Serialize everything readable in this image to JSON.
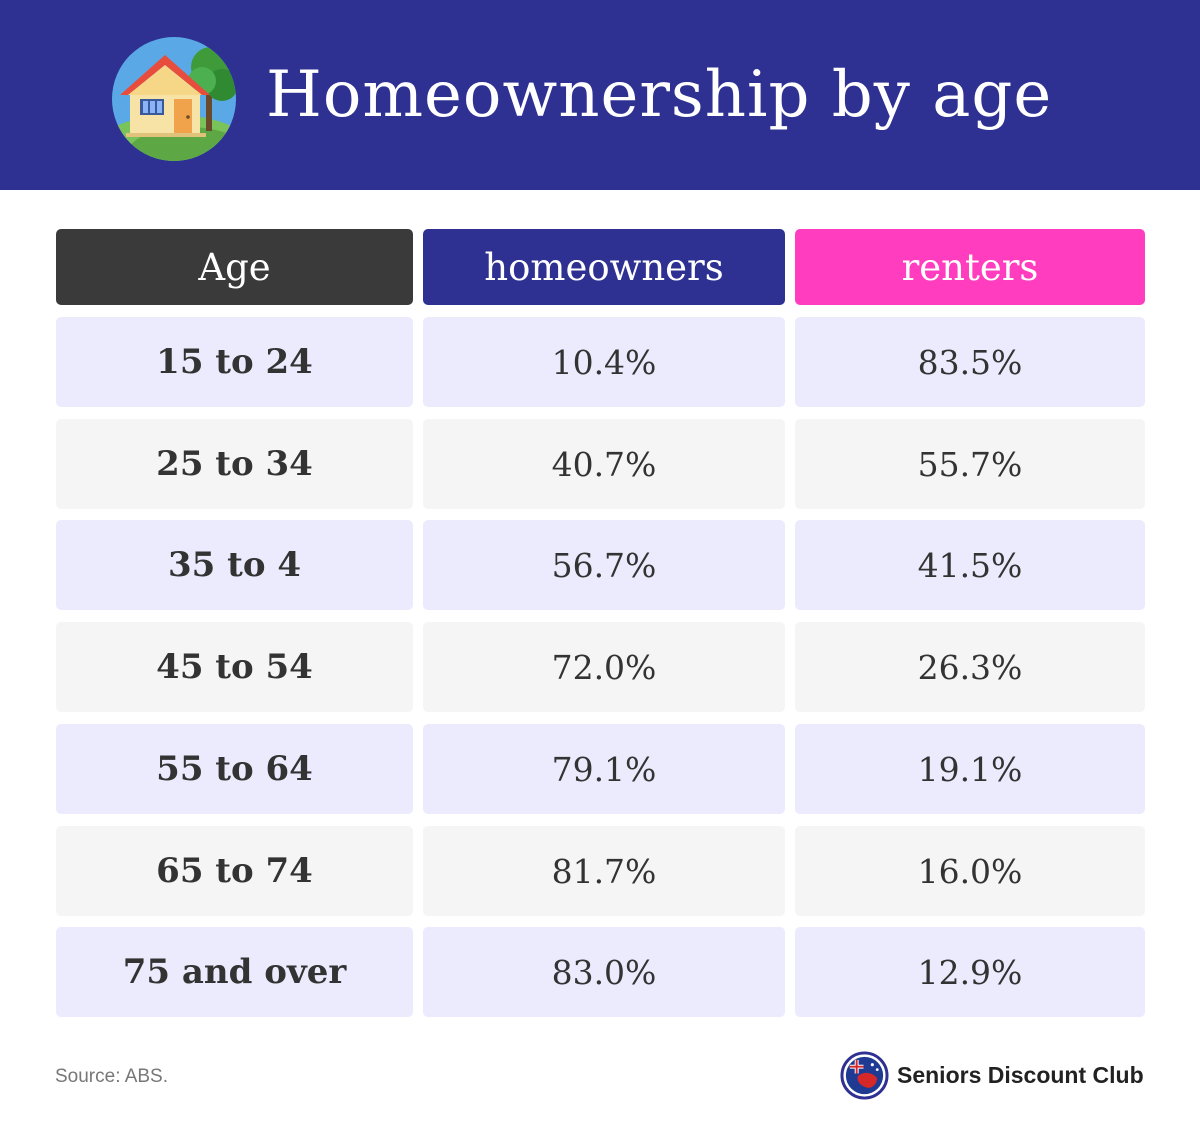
{
  "header": {
    "title": "Homeownership by age",
    "icon": "house-with-tree-icon",
    "background_color": "#2e3192"
  },
  "chart_data": {
    "type": "table",
    "columns": [
      {
        "label": "Age",
        "color": "#3a3a3a"
      },
      {
        "label": "homeowners",
        "color": "#2e3192"
      },
      {
        "label": "renters",
        "color": "#ff3dbe"
      }
    ],
    "row_colors": [
      "#ecebfd",
      "#f5f5f5"
    ],
    "rows": [
      {
        "age": "15 to 24",
        "homeowners": "10.4%",
        "renters": "83.5%"
      },
      {
        "age": "25 to 34",
        "homeowners": "40.7%",
        "renters": "55.7%"
      },
      {
        "age": "35 to 4",
        "homeowners": "56.7%",
        "renters": "41.5%"
      },
      {
        "age": "45 to 54",
        "homeowners": "72.0%",
        "renters": "26.3%"
      },
      {
        "age": "55 to 64",
        "homeowners": "79.1%",
        "renters": "19.1%"
      },
      {
        "age": "65 to 74",
        "homeowners": "81.7%",
        "renters": "16.0%"
      },
      {
        "age": "75 and over",
        "homeowners": "83.0%",
        "renters": "12.9%"
      }
    ]
  },
  "footer": {
    "source": "Source: ABS.",
    "brand_name": "Seniors Discount Club",
    "brand_icon": "australia-flag-icon"
  }
}
